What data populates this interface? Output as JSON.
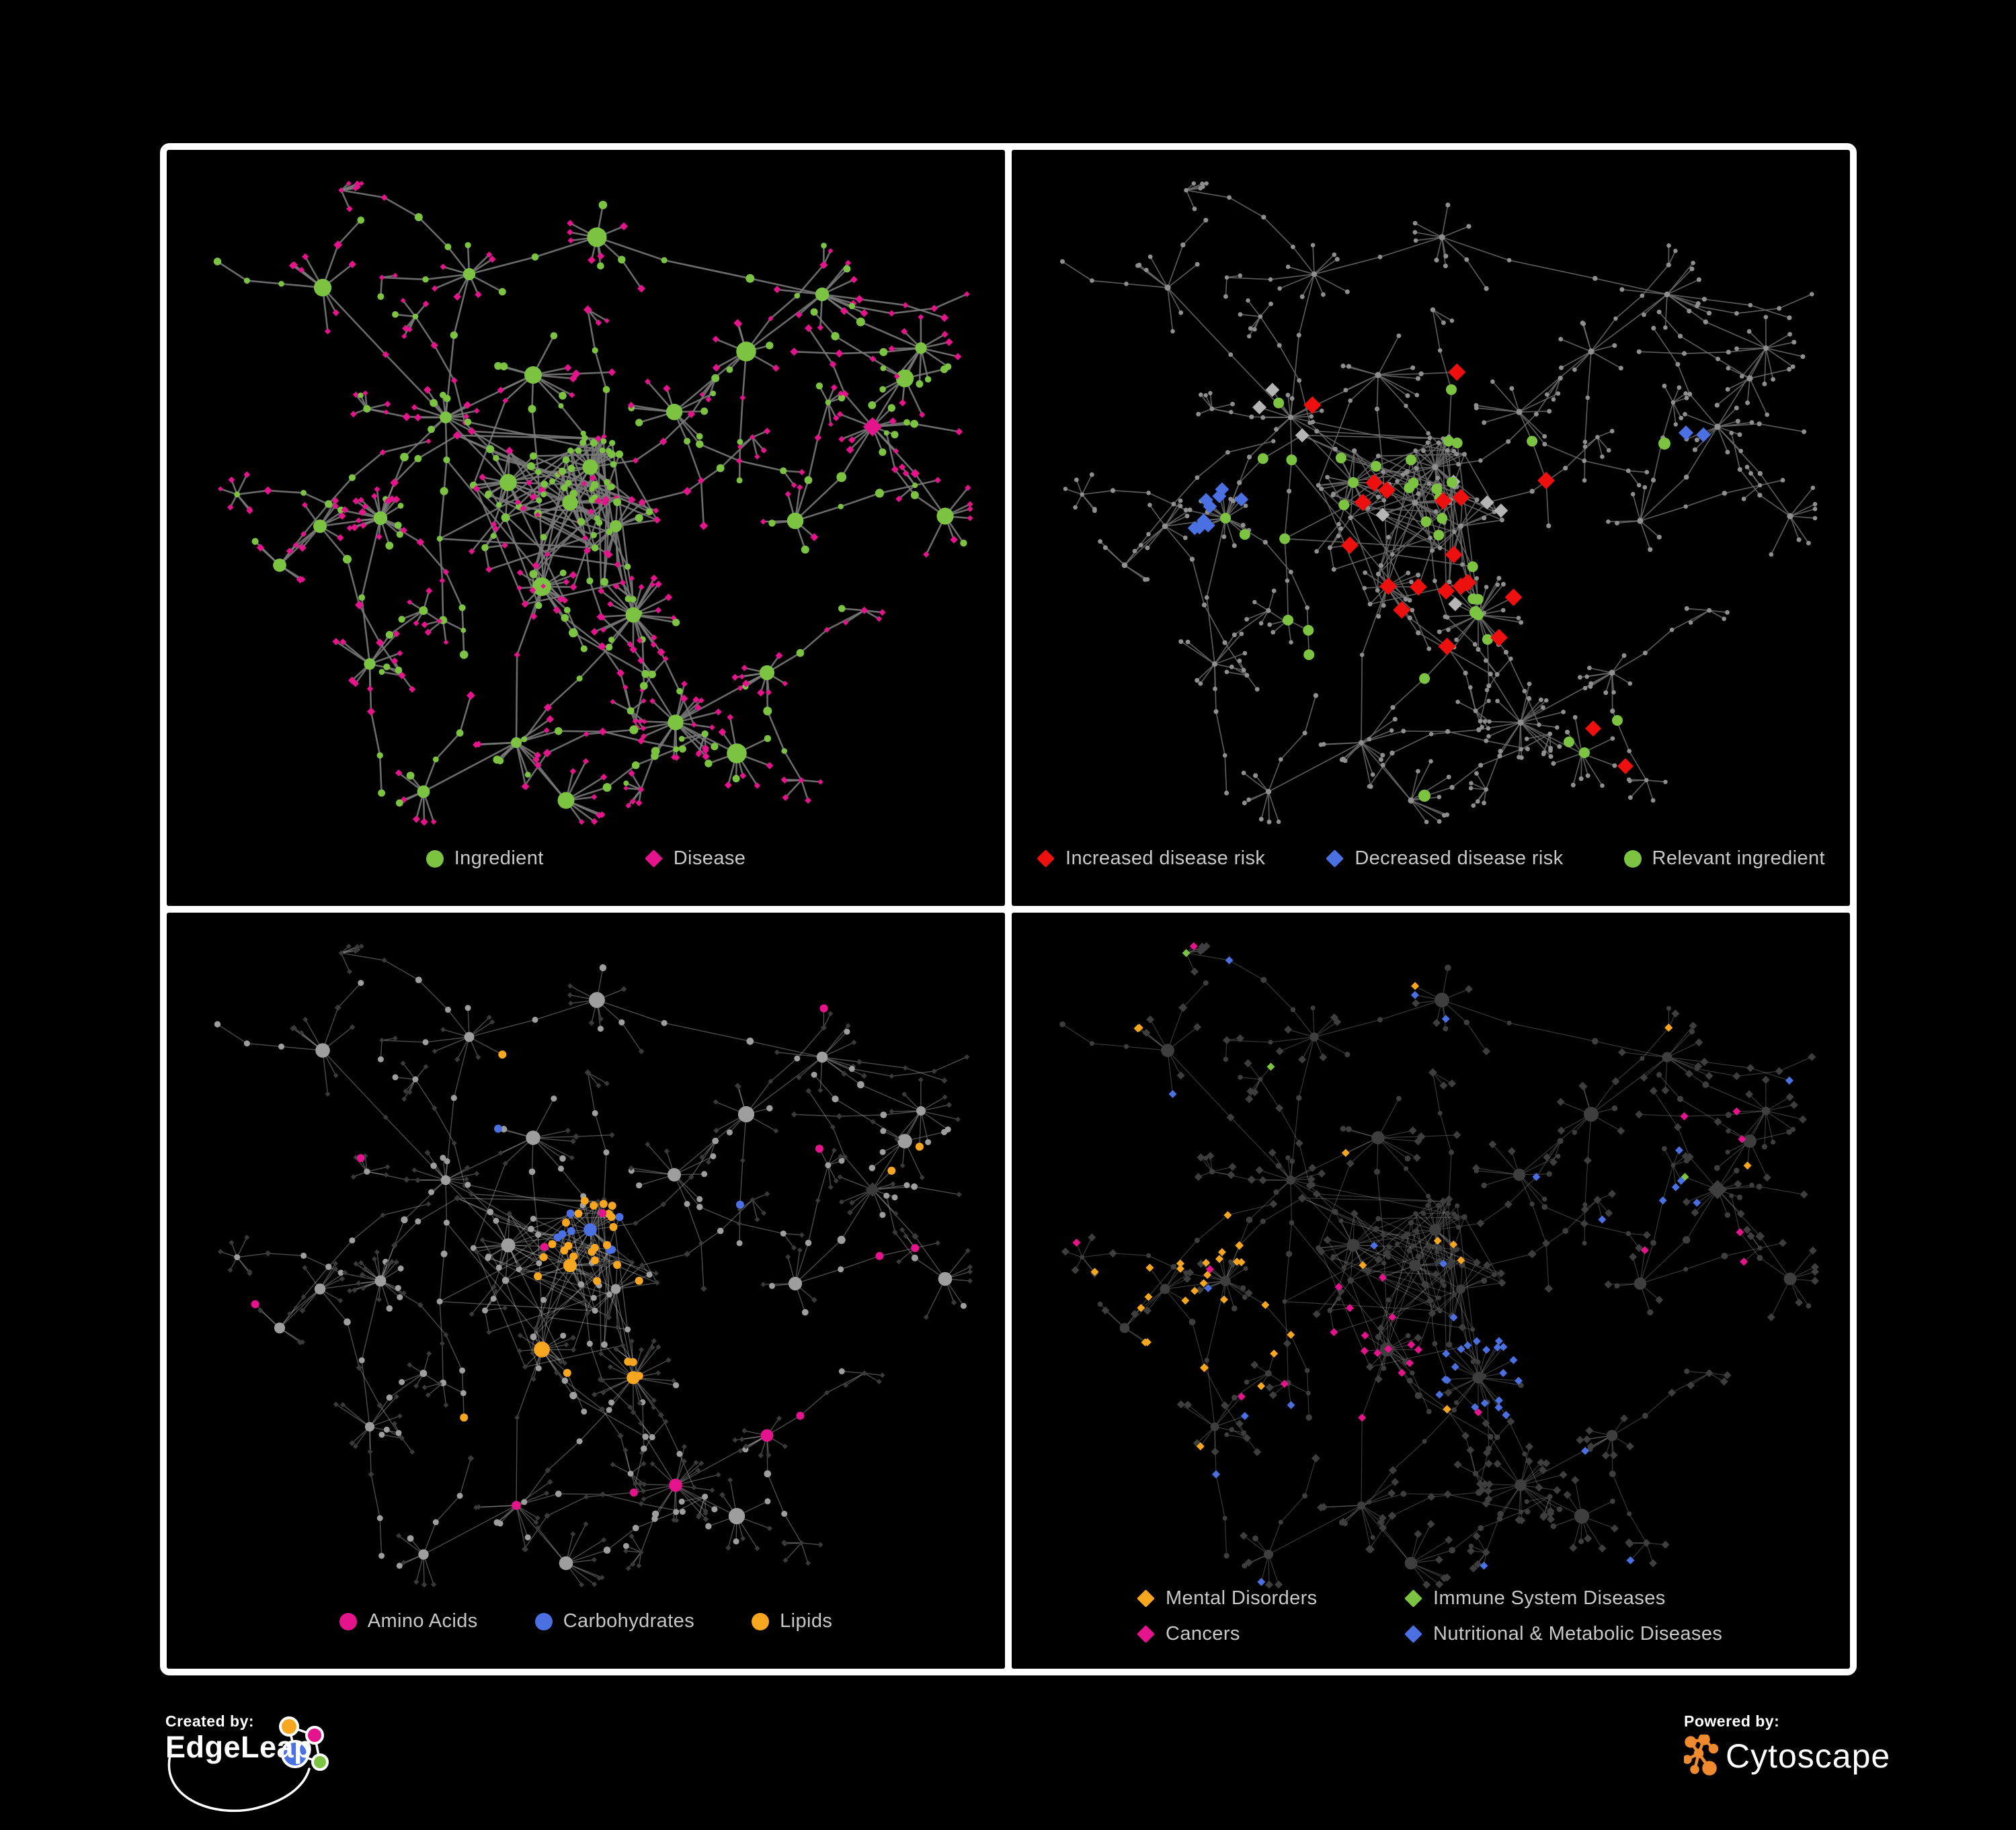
{
  "colors": {
    "green": "#7cc342",
    "pink": "#e6148c",
    "red": "#ee0f0f",
    "blue": "#4a70e2",
    "orange": "#f7a620",
    "silver": "#b5b5b5"
  },
  "background": "#000000",
  "panel_border": "#ffffff",
  "legend_text_color": "#c8c8c8",
  "panels": [
    {
      "id": "ingredient-disease",
      "legend": [
        {
          "shape": "circle",
          "color": "#7cc342",
          "label": "Ingredient"
        },
        {
          "shape": "diamond",
          "color": "#e6148c",
          "label": "Disease"
        }
      ]
    },
    {
      "id": "disease-risk",
      "legend": [
        {
          "shape": "diamond",
          "color": "#ee0f0f",
          "label": "Increased disease risk"
        },
        {
          "shape": "diamond",
          "color": "#4a70e2",
          "label": "Decreased disease risk"
        },
        {
          "shape": "circle",
          "color": "#7cc342",
          "label": "Relevant ingredient"
        }
      ]
    },
    {
      "id": "nutrient-classes",
      "legend": [
        {
          "shape": "circle",
          "color": "#e6148c",
          "label": "Amino Acids"
        },
        {
          "shape": "circle",
          "color": "#4a70e2",
          "label": "Carbohydrates"
        },
        {
          "shape": "circle",
          "color": "#f7a620",
          "label": "Lipids"
        }
      ]
    },
    {
      "id": "disease-classes",
      "legend": [
        {
          "shape": "diamond",
          "color": "#f7a620",
          "label": "Mental Disorders"
        },
        {
          "shape": "diamond",
          "color": "#7cc342",
          "label": "Immune System Diseases"
        },
        {
          "shape": "diamond",
          "color": "#e6148c",
          "label": "Cancers"
        },
        {
          "shape": "diamond",
          "color": "#4a70e2",
          "label": "Nutritional & Metabolic Diseases"
        }
      ]
    }
  ],
  "network_styles": [
    {
      "edge_color": "#7a7a7a",
      "edge_width": 2.6,
      "edge_opacity": 0.88
    },
    {
      "edge_color": "#6a6a6a",
      "edge_width": 1.7,
      "edge_opacity": 0.85
    },
    {
      "edge_color": "#a8a8a8",
      "edge_width": 1.4,
      "edge_opacity": 0.45
    },
    {
      "edge_color": "#8c8c8c",
      "edge_width": 1.2,
      "edge_opacity": 0.4
    }
  ],
  "footer": {
    "created_by": "Created by:",
    "brand_left": "EdgeLeap",
    "powered_by": "Powered by:",
    "brand_right": "Cytoscape",
    "cytoscape_orange": "#ef8b2e"
  }
}
